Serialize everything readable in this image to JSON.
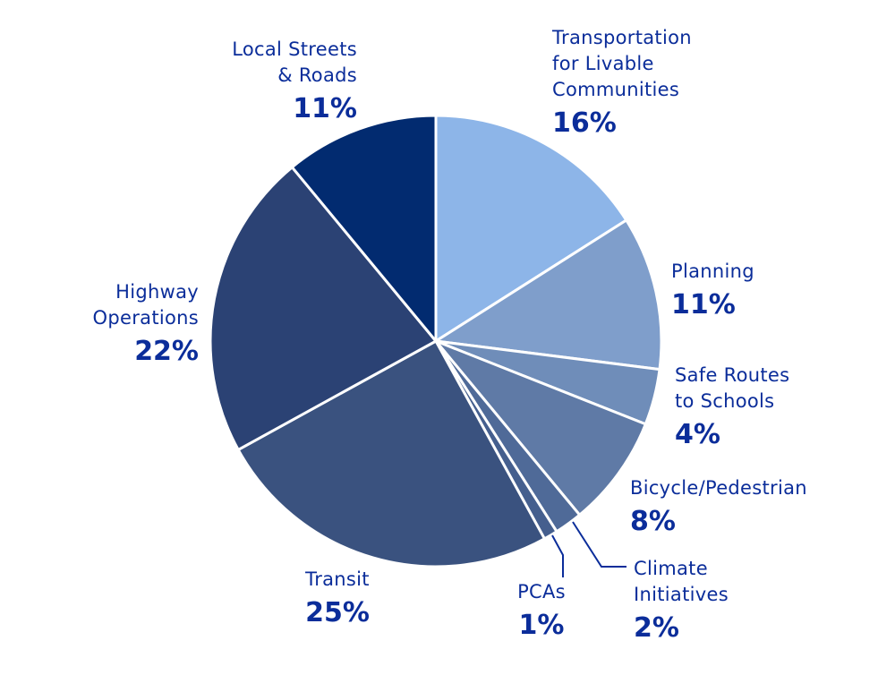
{
  "chart_data": {
    "type": "pie",
    "title": "",
    "start_angle_deg": 0,
    "direction": "clockwise",
    "slices": [
      {
        "name_lines": [
          "Transportation",
          "for Livable",
          "Communities"
        ],
        "percent_label": "16%",
        "value": 16,
        "color": "#8db5e8"
      },
      {
        "name_lines": [
          "Planning"
        ],
        "percent_label": "11%",
        "value": 11,
        "color": "#7f9ecb"
      },
      {
        "name_lines": [
          "Safe Routes",
          "to Schools"
        ],
        "percent_label": "4%",
        "value": 4,
        "color": "#6f8db9"
      },
      {
        "name_lines": [
          "Bicycle/Pedestrian"
        ],
        "percent_label": "8%",
        "value": 8,
        "color": "#5f7aa6"
      },
      {
        "name_lines": [
          "Climate",
          "Initiatives"
        ],
        "percent_label": "2%",
        "value": 2,
        "color": "#4f6a98"
      },
      {
        "name_lines": [
          "PCAs"
        ],
        "percent_label": "1%",
        "value": 1,
        "color": "#455f8e"
      },
      {
        "name_lines": [
          "Transit"
        ],
        "percent_label": "25%",
        "value": 25,
        "color": "#3a527f"
      },
      {
        "name_lines": [
          "Highway",
          "Operations"
        ],
        "percent_label": "22%",
        "value": 22,
        "color": "#2b4274"
      },
      {
        "name_lines": [
          "Local Streets",
          "& Roads"
        ],
        "percent_label": "11%",
        "value": 11,
        "color": "#022b70"
      }
    ]
  }
}
